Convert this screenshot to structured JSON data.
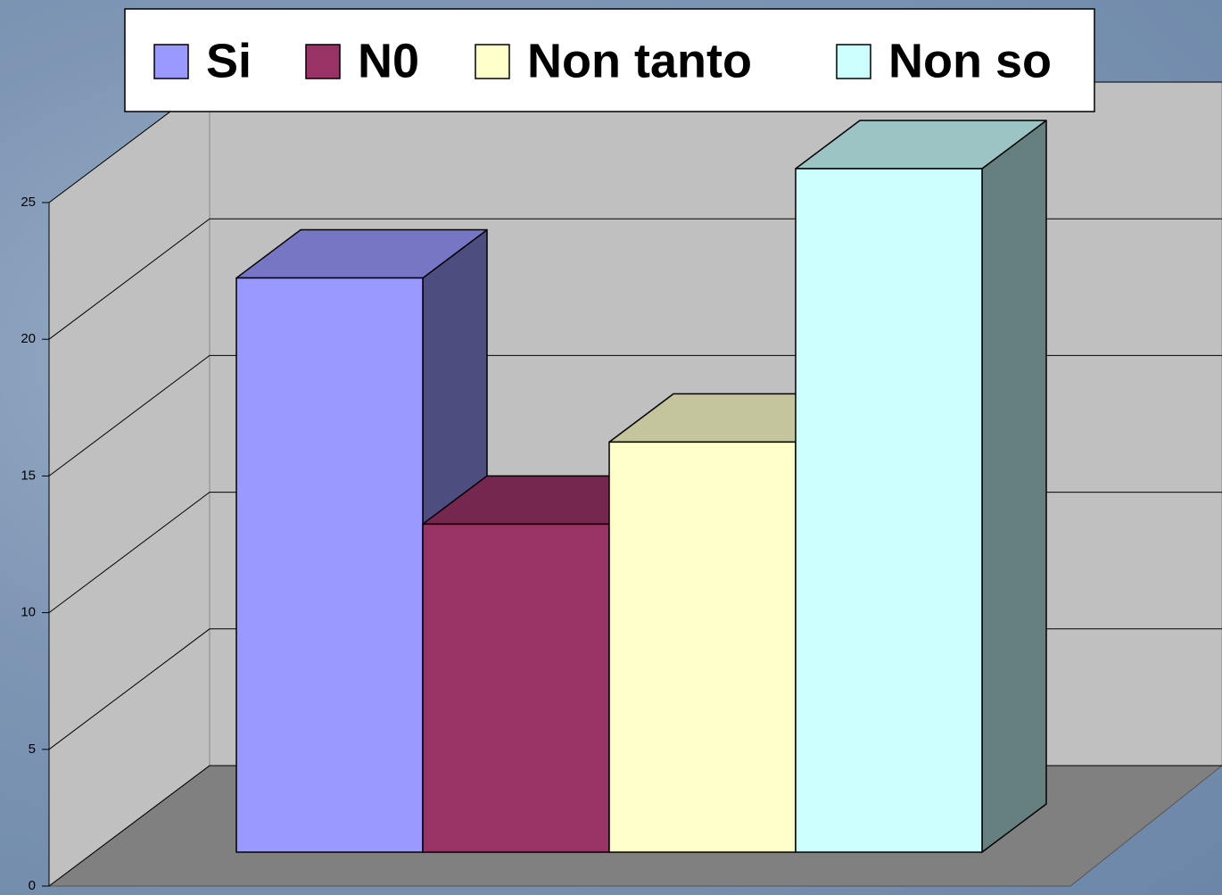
{
  "chart_data": {
    "type": "bar3d",
    "categories": [
      null
    ],
    "series": [
      {
        "name": "Si",
        "color": "#9999ff",
        "values": [
          21
        ]
      },
      {
        "name": "N0",
        "color": "#993366",
        "values": [
          12
        ]
      },
      {
        "name": "Non tanto",
        "color": "#ffffcc",
        "values": [
          15
        ]
      },
      {
        "name": "Non so",
        "color": "#ccffff",
        "values": [
          25
        ]
      }
    ],
    "ylim": [
      0,
      25
    ],
    "yticks": [
      0,
      5,
      10,
      15,
      20,
      25
    ],
    "grid": true,
    "legend": "top"
  }
}
